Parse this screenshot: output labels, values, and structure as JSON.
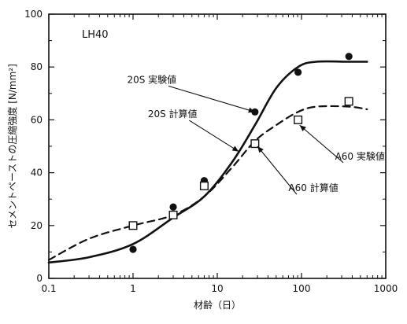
{
  "chart_data": {
    "type": "line",
    "panel_label": "LH40",
    "xlabel": "材齢（日）",
    "ylabel": "セメントペーストの圧縮強度 [N/mm²]",
    "x_scale": "log",
    "xlim": [
      0.1,
      1000
    ],
    "ylim": [
      0,
      100
    ],
    "x_ticks": [
      0.1,
      1,
      10,
      100,
      1000
    ],
    "x_tick_labels": [
      "0.1",
      "1",
      "10",
      "100",
      "1000"
    ],
    "y_ticks": [
      0,
      20,
      40,
      60,
      80,
      100
    ],
    "y_tick_labels": [
      "0",
      "20",
      "40",
      "60",
      "80",
      "100"
    ],
    "grid": false,
    "series": [
      {
        "name": "20S 実験値",
        "kind": "scatter",
        "marker": "filled-circle",
        "x": [
          1,
          3,
          7,
          28,
          91,
          365
        ],
        "y": [
          11,
          27,
          37,
          63,
          78,
          84
        ]
      },
      {
        "name": "20S 計算値",
        "kind": "line",
        "style": "solid",
        "x": [
          0.1,
          0.3,
          1,
          3,
          7,
          15,
          28,
          50,
          91,
          150,
          365,
          600
        ],
        "y": [
          6,
          8,
          13,
          23,
          31,
          44,
          58,
          72,
          80,
          82,
          82,
          82
        ]
      },
      {
        "name": "A60 実験値",
        "kind": "scatter",
        "marker": "open-square",
        "x": [
          1,
          3,
          7,
          28,
          91,
          365
        ],
        "y": [
          20,
          24,
          35,
          51,
          60,
          67
        ]
      },
      {
        "name": "A60 計算値",
        "kind": "line",
        "style": "dashed",
        "x": [
          0.1,
          0.3,
          1,
          3,
          7,
          15,
          28,
          50,
          91,
          150,
          365,
          600
        ],
        "y": [
          7,
          15,
          20,
          24,
          31,
          42,
          52,
          58,
          63,
          65,
          65,
          64
        ]
      }
    ],
    "annotations": [
      {
        "text": "20S 実験値",
        "label_x": 0.85,
        "label_y": 74,
        "target_x": 28,
        "target_y": 63
      },
      {
        "text": "20S 計算値",
        "label_x": 1.5,
        "label_y": 61,
        "target_x": 18,
        "target_y": 48
      },
      {
        "text": "A60 実験値",
        "label_x": 250,
        "label_y": 45,
        "target_x": 95,
        "target_y": 58
      },
      {
        "text": "A60 計算値",
        "label_x": 70,
        "label_y": 33,
        "target_x": 30,
        "target_y": 50
      }
    ]
  }
}
